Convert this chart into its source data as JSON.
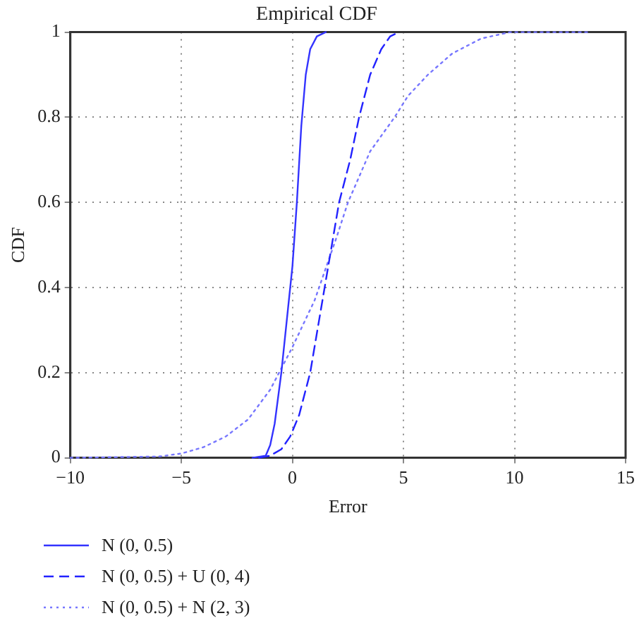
{
  "chart_data": {
    "type": "line",
    "title": "Empirical CDF",
    "xlabel": "Error",
    "ylabel": "CDF",
    "xlim": [
      -10,
      15
    ],
    "xticks": [
      -10,
      -5,
      0,
      5,
      10,
      15
    ],
    "ylim": [
      0,
      1
    ],
    "yticks": [
      0,
      0.2,
      0.4,
      0.6,
      0.8,
      1
    ],
    "grid": true,
    "legend": "bottom",
    "marker": "none",
    "series": [
      {
        "name": "N (0, 0.5)",
        "color": "#3333ff",
        "line_style": "solid",
        "x": [
          -1.8,
          -1.2,
          -1.0,
          -0.8,
          -0.5,
          -0.2,
          0,
          0.2,
          0.4,
          0.6,
          0.8,
          1.1,
          1.5
        ],
        "values": [
          0,
          0.005,
          0.03,
          0.08,
          0.2,
          0.35,
          0.45,
          0.6,
          0.78,
          0.9,
          0.96,
          0.99,
          1
        ]
      },
      {
        "name": "N (0, 0.5) + U (0, 4)",
        "color": "#2222ff",
        "line_style": "dashed",
        "x": [
          -1.5,
          -1,
          -0.5,
          -0.1,
          0.3,
          0.8,
          1.45,
          2.1,
          2.6,
          3.0,
          3.5,
          4.0,
          4.4,
          4.8
        ],
        "values": [
          0,
          0.005,
          0.02,
          0.05,
          0.1,
          0.2,
          0.4,
          0.6,
          0.7,
          0.8,
          0.9,
          0.96,
          0.99,
          1
        ]
      },
      {
        "name": "N (0, 0.5) + N (2, 3)",
        "color": "#7777ff",
        "line_style": "dotted",
        "x": [
          -10,
          -6,
          -5,
          -4,
          -3,
          -2,
          -1,
          0,
          1,
          2,
          2.5,
          3.5,
          4.6,
          5.2,
          6.1,
          7.2,
          8.5,
          9.8,
          13.3
        ],
        "values": [
          0,
          0.003,
          0.01,
          0.025,
          0.05,
          0.09,
          0.16,
          0.26,
          0.37,
          0.52,
          0.6,
          0.72,
          0.8,
          0.85,
          0.9,
          0.95,
          0.985,
          1,
          1
        ]
      }
    ]
  }
}
